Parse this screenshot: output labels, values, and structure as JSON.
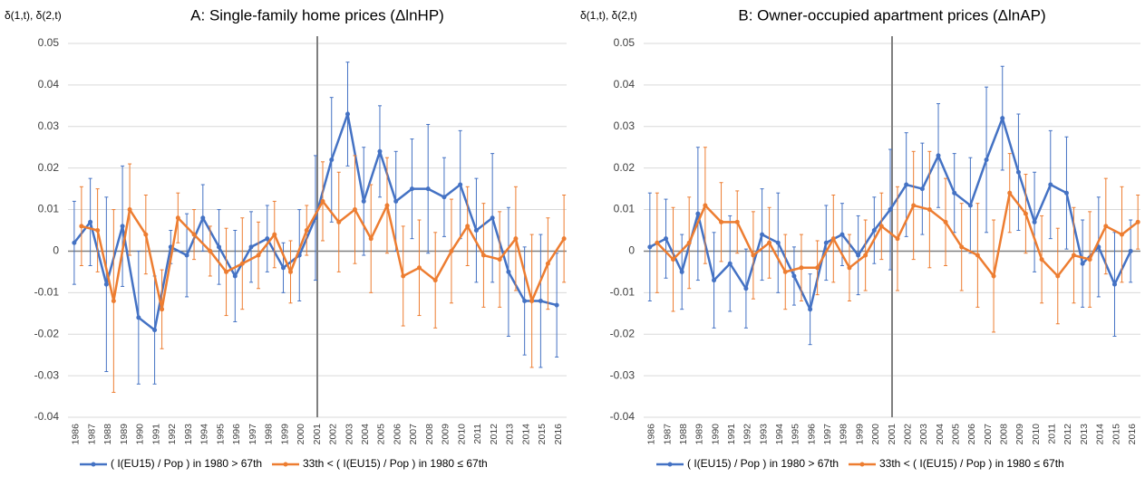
{
  "chart_data": [
    {
      "type": "line",
      "title": "A: Single-family home prices (ΔlnHP)",
      "ylabel": "δ(1,t), δ(2,t)",
      "categories": [
        "1986",
        "1987",
        "1988",
        "1989",
        "1990",
        "1991",
        "1992",
        "1993",
        "1994",
        "1995",
        "1996",
        "1997",
        "1998",
        "1999",
        "2000",
        "2001",
        "2002",
        "2003",
        "2004",
        "2005",
        "2006",
        "2007",
        "2008",
        "2009",
        "2010",
        "2011",
        "2012",
        "2013",
        "2014",
        "2015",
        "2016"
      ],
      "ylim": [
        -0.04,
        0.05
      ],
      "yticks": [
        -0.04,
        -0.03,
        -0.02,
        -0.01,
        0,
        0.01,
        0.02,
        0.03,
        0.04,
        0.05
      ],
      "grid": true,
      "series": [
        {
          "name": "( I(EU15) / Pop ) in 1980 > 67th",
          "color": "#4472c4",
          "values": [
            0.002,
            0.007,
            -0.008,
            0.006,
            -0.016,
            -0.019,
            0.001,
            -0.001,
            0.008,
            0.001,
            -0.006,
            0.001,
            0.003,
            -0.004,
            -0.001,
            0.008,
            0.022,
            0.033,
            0.012,
            0.024,
            0.012,
            0.015,
            0.015,
            0.013,
            0.016,
            0.005,
            0.008,
            -0.005,
            -0.012,
            -0.012,
            -0.013
          ],
          "errors": [
            0.01,
            0.0105,
            0.021,
            0.0145,
            0.016,
            0.013,
            0.004,
            0.01,
            0.008,
            0.009,
            0.011,
            0.0085,
            0.008,
            0.006,
            0.011,
            0.015,
            0.015,
            0.0125,
            0.013,
            0.011,
            0.012,
            0.012,
            0.0155,
            0.0095,
            0.013,
            0.0125,
            0.0155,
            0.0155,
            0.013,
            0.016,
            0.0125
          ]
        },
        {
          "name": "33th < ( I(EU15) / Pop ) in 1980 ≤ 67th",
          "color": "#ed7d31",
          "values": [
            0.006,
            0.005,
            -0.012,
            0.01,
            0.004,
            -0.014,
            0.008,
            0.004,
            0,
            -0.005,
            -0.003,
            -0.001,
            0.004,
            -0.005,
            0.005,
            0.012,
            0.007,
            0.01,
            0.003,
            0.011,
            -0.006,
            -0.004,
            -0.007,
            0,
            0.006,
            -0.001,
            -0.002,
            0.003,
            -0.012,
            -0.003,
            0.003
          ],
          "errors": [
            0.0095,
            0.01,
            0.022,
            0.011,
            0.0095,
            0.0095,
            0.006,
            0.006,
            0.006,
            0.0105,
            0.011,
            0.008,
            0.008,
            0.0075,
            0.006,
            0.0095,
            0.012,
            0.013,
            0.013,
            0.0115,
            0.012,
            0.0115,
            0.0115,
            0.0125,
            0.0095,
            0.0125,
            0.0115,
            0.0125,
            0.016,
            0.011,
            0.0105
          ]
        }
      ]
    },
    {
      "type": "line",
      "title": "B: Owner-occupied apartment prices (ΔlnAP)",
      "ylabel": "δ(1,t), δ(2,t)",
      "categories": [
        "1986",
        "1987",
        "1988",
        "1989",
        "1990",
        "1991",
        "1992",
        "1993",
        "1994",
        "1995",
        "1996",
        "1997",
        "1998",
        "1999",
        "2000",
        "2001",
        "2002",
        "2003",
        "2004",
        "2005",
        "2006",
        "2007",
        "2008",
        "2009",
        "2010",
        "2011",
        "2012",
        "2013",
        "2014",
        "2015",
        "2016"
      ],
      "ylim": [
        -0.04,
        0.05
      ],
      "yticks": [
        -0.04,
        -0.03,
        -0.02,
        -0.01,
        0,
        0.01,
        0.02,
        0.03,
        0.04,
        0.05
      ],
      "grid": true,
      "series": [
        {
          "name": "( I(EU15) / Pop ) in 1980 > 67th",
          "color": "#4472c4",
          "values": [
            0.001,
            0.003,
            -0.005,
            0.009,
            -0.007,
            -0.003,
            -0.009,
            0.004,
            0.002,
            -0.006,
            -0.014,
            0.002,
            0.004,
            -0.001,
            0.005,
            0.01,
            0.016,
            0.015,
            0.023,
            0.014,
            0.011,
            0.022,
            0.032,
            0.019,
            0.007,
            0.016,
            0.014,
            -0.003,
            0.001,
            -0.008,
            0
          ],
          "errors": [
            0.013,
            0.0095,
            0.009,
            0.016,
            0.0115,
            0.0115,
            0.0095,
            0.011,
            0.012,
            0.007,
            0.0085,
            0.009,
            0.0075,
            0.0095,
            0.008,
            0.0145,
            0.0125,
            0.011,
            0.0125,
            0.0095,
            0.0115,
            0.0175,
            0.0125,
            0.014,
            0.012,
            0.013,
            0.0135,
            0.0105,
            0.012,
            0.0125,
            0.0075
          ]
        },
        {
          "name": "33th < ( I(EU15) / Pop ) in 1980 ≤ 67th",
          "color": "#ed7d31",
          "values": [
            0.002,
            -0.002,
            0.002,
            0.011,
            0.007,
            0.007,
            -0.001,
            0.002,
            -0.005,
            -0.004,
            -0.004,
            0.003,
            -0.004,
            -0.001,
            0.006,
            0.003,
            0.011,
            0.01,
            0.007,
            0.001,
            -0.001,
            -0.006,
            0.014,
            0.009,
            -0.002,
            -0.006,
            -0.001,
            -0.002,
            0.006,
            0.004,
            0.007
          ],
          "errors": [
            0.012,
            0.0125,
            0.011,
            0.014,
            0.0095,
            0.0075,
            0.0105,
            0.0085,
            0.009,
            0.008,
            0.0065,
            0.0105,
            0.008,
            0.0085,
            0.008,
            0.0125,
            0.013,
            0.014,
            0.0105,
            0.0105,
            0.0125,
            0.0135,
            0.0095,
            0.0095,
            0.0105,
            0.0115,
            0.0115,
            0.0115,
            0.0115,
            0.0115,
            0.0065
          ]
        }
      ]
    }
  ]
}
